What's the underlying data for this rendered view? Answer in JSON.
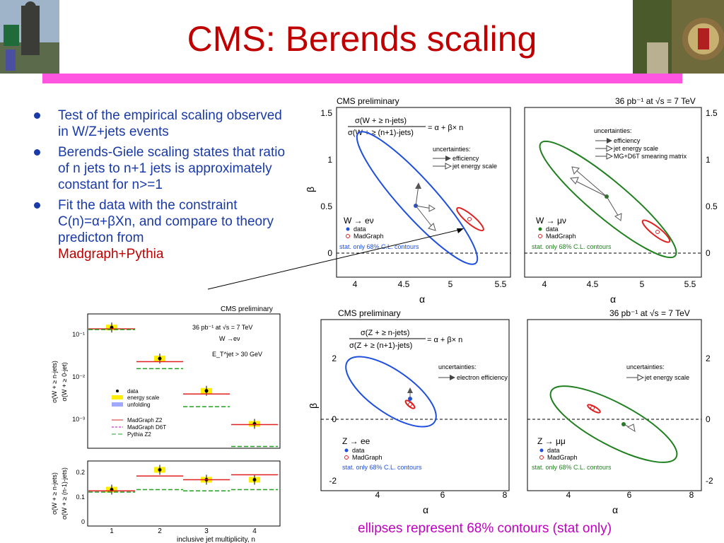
{
  "slide": {
    "title": "CMS: Berends scaling",
    "caption": "ellipses represent 68% contours (stat only)"
  },
  "bullets": [
    {
      "text": "Test of the empirical scaling observed in W/Z+jets events"
    },
    {
      "text": "Berends-Giele scaling states that ratio of n jets to n+1 jets is approximately constant for n>=1"
    },
    {
      "text": "Fit the data with the constraint C(n)=α+βXn, and compare to theory predicton from",
      "highlight": "Madgraph+Pythia"
    }
  ],
  "plots": {
    "top_header_left": "CMS preliminary",
    "top_header_right": "36 pb⁻¹ at √s = 7 TeV",
    "top_formula_num": "σ(W + ≥ n-jets)",
    "top_formula_den": "σ(W + ≥ (n+1)-jets)",
    "top_formula_rhs": "= α + β× n",
    "z_formula_num": "σ(Z + ≥ n-jets)",
    "z_formula_den": "σ(Z + ≥ (n+1)-jets)",
    "uncert_title": "uncertainties:",
    "uncert_eff": "efficiency",
    "uncert_jes": "jet energy scale",
    "uncert_smear": "MG+D6T smearing matrix",
    "uncert_eleff": "electron efficiency",
    "we_label": "W → eν",
    "wmu_label": "W → μν",
    "zee_label": "Z → ee",
    "zmm_label": "Z → μμ",
    "leg_data": "data",
    "leg_mg": "MadGraph",
    "stat_note": "stat. only 68% C.L. contours",
    "alpha": "α",
    "beta": "β",
    "top_x_ticks": [
      "4",
      "4.5",
      "5",
      "5.5"
    ],
    "top_y_ticks": [
      "0",
      "0.5",
      "1",
      "1.5"
    ],
    "bot_x_ticks": [
      "4",
      "6",
      "8"
    ],
    "bot_y_ticks": [
      "-2",
      "0",
      "2"
    ],
    "ratio_header": "CMS preliminary",
    "ratio_lumi": "36 pb⁻¹ at √s = 7 TeV",
    "ratio_channel": "W →eν",
    "ratio_cut": "E_T^jet > 30 GeV",
    "ratio_ylabel_top_num": "σ(W + ≥ n-jets)",
    "ratio_ylabel_top_den": "σ(W + ≥ 0-jet)",
    "ratio_ylabel_bot_num": "σ(W + ≥ n-jets)",
    "ratio_ylabel_bot_den": "σ(W + ≥ (n-1)-jets)",
    "ratio_xlabel": "inclusive jet multiplicity, n",
    "ratio_leg": [
      "data",
      "energy scale",
      "unfolding",
      "MadGraph Z2",
      "MadGraph D6T",
      "Pythia Z2"
    ],
    "ratio_top_ticks": [
      "10⁻¹",
      "10⁻²",
      "10⁻³"
    ],
    "ratio_bot_ticks": [
      "0.2",
      "0.1",
      "0"
    ],
    "ratio_x_ticks": [
      "1",
      "2",
      "3",
      "4"
    ]
  },
  "chart_data": [
    {
      "type": "scatter",
      "title": "W → eν",
      "xlabel": "α",
      "ylabel": "β",
      "xlim": [
        3.8,
        5.55
      ],
      "ylim": [
        -0.2,
        1.55
      ],
      "series": [
        {
          "name": "data",
          "x": [
            4.65
          ],
          "y": [
            0.5
          ]
        },
        {
          "name": "MadGraph",
          "x": [
            5.23
          ],
          "y": [
            0.37
          ]
        }
      ]
    },
    {
      "type": "scatter",
      "title": "W → μν",
      "xlabel": "α",
      "ylabel": "β",
      "xlim": [
        3.8,
        5.55
      ],
      "ylim": [
        -0.2,
        1.55
      ],
      "series": [
        {
          "name": "data",
          "x": [
            4.65
          ],
          "y": [
            0.61
          ]
        },
        {
          "name": "MadGraph",
          "x": [
            5.17
          ],
          "y": [
            0.22
          ]
        }
      ]
    },
    {
      "type": "scatter",
      "title": "Z → ee",
      "xlabel": "α",
      "ylabel": "β",
      "xlim": [
        2.4,
        8.6
      ],
      "ylim": [
        -2.3,
        2.3
      ],
      "series": [
        {
          "name": "data",
          "x": [
            5.1
          ],
          "y": [
            0.7
          ]
        },
        {
          "name": "MadGraph",
          "x": [
            5.1
          ],
          "y": [
            0.45
          ]
        }
      ]
    },
    {
      "type": "scatter",
      "title": "Z → μμ",
      "xlabel": "α",
      "ylabel": "β",
      "xlim": [
        2.4,
        8.6
      ],
      "ylim": [
        -2.3,
        2.3
      ],
      "series": [
        {
          "name": "data",
          "x": [
            5.8
          ],
          "y": [
            -0.2
          ]
        },
        {
          "name": "MadGraph",
          "x": [
            4.9
          ],
          "y": [
            0.4
          ]
        }
      ]
    },
    {
      "type": "scatter",
      "title": "σ(W + ≥ n-jets)/σ(W + ≥ 0-jet)",
      "xlabel": "inclusive jet multiplicity, n",
      "categories": [
        "1",
        "2",
        "3",
        "4"
      ],
      "ylog": true,
      "series": [
        {
          "name": "data",
          "values": [
            0.14,
            0.026,
            0.0045,
            0.00075
          ]
        },
        {
          "name": "MadGraph Z2",
          "values": [
            0.13,
            0.022,
            0.0038,
            0.00072
          ]
        },
        {
          "name": "Pythia Z2",
          "values": [
            0.125,
            0.015,
            0.0019,
            0.00022
          ]
        }
      ]
    },
    {
      "type": "scatter",
      "title": "σ(W + ≥ n-jets)/σ(W + ≥ (n-1)-jets)",
      "xlabel": "inclusive jet multiplicity, n",
      "categories": [
        "1",
        "2",
        "3",
        "4"
      ],
      "ylim": [
        0,
        0.25
      ],
      "series": [
        {
          "name": "data",
          "values": [
            0.13,
            0.21,
            0.17,
            0.17
          ]
        },
        {
          "name": "MadGraph Z2",
          "values": [
            0.125,
            0.185,
            0.17,
            0.19
          ]
        },
        {
          "name": "Pythia Z2",
          "values": [
            0.12,
            0.13,
            0.125,
            0.13
          ]
        }
      ]
    }
  ]
}
